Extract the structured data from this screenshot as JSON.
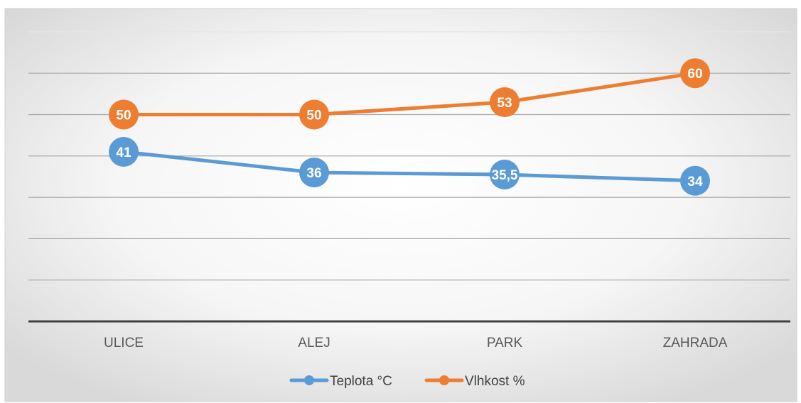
{
  "chart_data": {
    "type": "line",
    "title": "",
    "xlabel": "",
    "ylabel": "",
    "categories": [
      "ULICE",
      "ALEJ",
      "PARK",
      "ZAHRADA"
    ],
    "ylim": [
      0,
      70
    ],
    "grid": true,
    "legend_position": "bottom",
    "series": [
      {
        "name": "Teplota °C",
        "color": "#5B9BD5",
        "values": [
          41,
          36,
          35.5,
          34
        ],
        "labels": [
          "41",
          "36",
          "35,5",
          "34"
        ]
      },
      {
        "name": "Vlhkost %",
        "color": "#ED7D31",
        "values": [
          50,
          50,
          53,
          60
        ],
        "labels": [
          "50",
          "50",
          "53",
          "60"
        ]
      }
    ]
  }
}
